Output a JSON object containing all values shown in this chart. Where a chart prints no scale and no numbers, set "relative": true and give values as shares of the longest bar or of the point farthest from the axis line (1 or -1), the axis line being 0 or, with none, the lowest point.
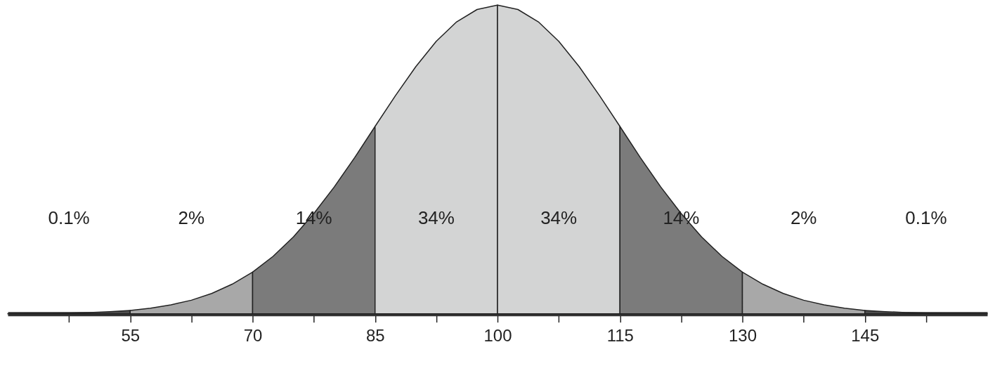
{
  "chart_data": {
    "type": "area",
    "relative": true,
    "xlim": [
      40,
      160
    ],
    "xticks": [
      {
        "value": 47.5,
        "label": null
      },
      55,
      {
        "value": 62.5,
        "label": null
      },
      70,
      {
        "value": 77.5,
        "label": null
      },
      85,
      {
        "value": 92.5,
        "label": null
      },
      100,
      {
        "value": 107.5,
        "label": null
      },
      115,
      {
        "value": 122.5,
        "label": null
      },
      130,
      {
        "value": 137.5,
        "label": null
      },
      145,
      {
        "value": 152.5,
        "label": null
      }
    ],
    "series": [
      {
        "color": "#4d4d4d",
        "x": [
          40,
          42.5,
          45,
          47.5,
          50,
          52.5,
          55
        ],
        "values": [
          0.0,
          0.001,
          0.001,
          0.002,
          0.004,
          0.007,
          0.011
        ]
      },
      {
        "color": "#a8a8a8",
        "x": [
          55,
          57.5,
          60,
          62.5,
          65,
          67.5,
          70
        ],
        "values": [
          0.011,
          0.018,
          0.029,
          0.044,
          0.066,
          0.096,
          0.135
        ]
      },
      {
        "color": "#7b7b7b",
        "x": [
          70,
          72.5,
          75,
          77.5,
          80,
          82.5,
          85
        ],
        "values": [
          0.135,
          0.186,
          0.249,
          0.325,
          0.411,
          0.506,
          0.607
        ]
      },
      {
        "color": "#d3d4d4",
        "x": [
          85,
          87.5,
          90,
          92.5,
          95,
          97.5,
          100
        ],
        "values": [
          0.607,
          0.707,
          0.801,
          0.883,
          0.946,
          0.986,
          1
        ]
      },
      {
        "color": "#d3d4d4",
        "x": [
          100,
          102.5,
          105,
          107.5,
          110,
          112.5,
          115
        ],
        "values": [
          1,
          0.986,
          0.946,
          0.883,
          0.801,
          0.707,
          0.607
        ]
      },
      {
        "color": "#7b7b7b",
        "x": [
          115,
          117.5,
          120,
          122.5,
          125,
          127.5,
          130
        ],
        "values": [
          0.607,
          0.506,
          0.411,
          0.325,
          0.249,
          0.186,
          0.135
        ]
      },
      {
        "color": "#a8a8a8",
        "x": [
          130,
          132.5,
          135,
          137.5,
          140,
          142.5,
          145
        ],
        "values": [
          0.135,
          0.096,
          0.066,
          0.044,
          0.029,
          0.018,
          0.011
        ]
      },
      {
        "color": "#4d4d4d",
        "x": [
          145,
          147.5,
          150,
          152.5,
          155,
          157.5,
          160
        ],
        "values": [
          0.011,
          0.007,
          0.004,
          0.002,
          0.001,
          0.001,
          0.0
        ]
      }
    ],
    "annotations": [
      "0.1%",
      "2%",
      "14%",
      "34%",
      "34%",
      "14%",
      "2%",
      "0.1%"
    ]
  }
}
